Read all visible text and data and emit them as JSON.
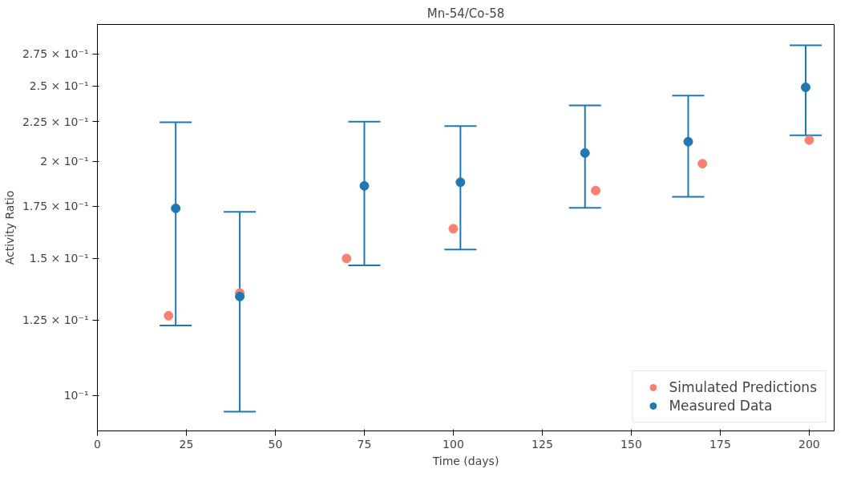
{
  "chart_data": {
    "type": "scatter",
    "title": "Mn-54/Co-58",
    "xlabel": "Time (days)",
    "ylabel": "Activity Ratio",
    "log": "y",
    "marker": "circle",
    "legend": "bottom right",
    "xlim": [
      0,
      207
    ],
    "xticks": [
      0,
      25,
      50,
      75,
      100,
      125,
      150,
      175,
      200
    ],
    "ylim": [
      0.09,
      0.3
    ],
    "yticks": [
      {
        "value": 0.1,
        "label": "10⁻¹"
      },
      {
        "value": 0.125,
        "label": "1.25 × 10⁻¹"
      },
      {
        "value": 0.15,
        "label": "1.5 × 10⁻¹"
      },
      {
        "value": 0.175,
        "label": "1.75 × 10⁻¹"
      },
      {
        "value": 0.2,
        "label": "2 × 10⁻¹"
      },
      {
        "value": 0.225,
        "label": "2.25 × 10⁻¹"
      },
      {
        "value": 0.25,
        "label": "2.5 × 10⁻¹"
      },
      {
        "value": 0.275,
        "label": "2.75 × 10⁻¹"
      }
    ],
    "series": [
      {
        "name": "Simulated Predictions",
        "color": "#fa8072",
        "x": [
          20,
          40,
          70,
          100,
          140,
          170,
          200
        ],
        "values": [
          0.1266,
          0.1354,
          0.15,
          0.1638,
          0.1834,
          0.1986,
          0.213
        ]
      },
      {
        "name": "Measured Data",
        "color": "#1f77b4",
        "x": [
          22,
          40,
          75,
          102,
          137,
          166,
          199
        ],
        "values": [
          0.174,
          0.134,
          0.186,
          0.188,
          0.205,
          0.212,
          0.249
        ],
        "errors": [
          [
            0.123,
            0.2245
          ],
          [
            0.0953,
            0.1722
          ],
          [
            0.147,
            0.225
          ],
          [
            0.154,
            0.222
          ],
          [
            0.1743,
            0.236
          ],
          [
            0.18,
            0.243
          ],
          [
            0.216,
            0.282
          ]
        ]
      }
    ]
  }
}
